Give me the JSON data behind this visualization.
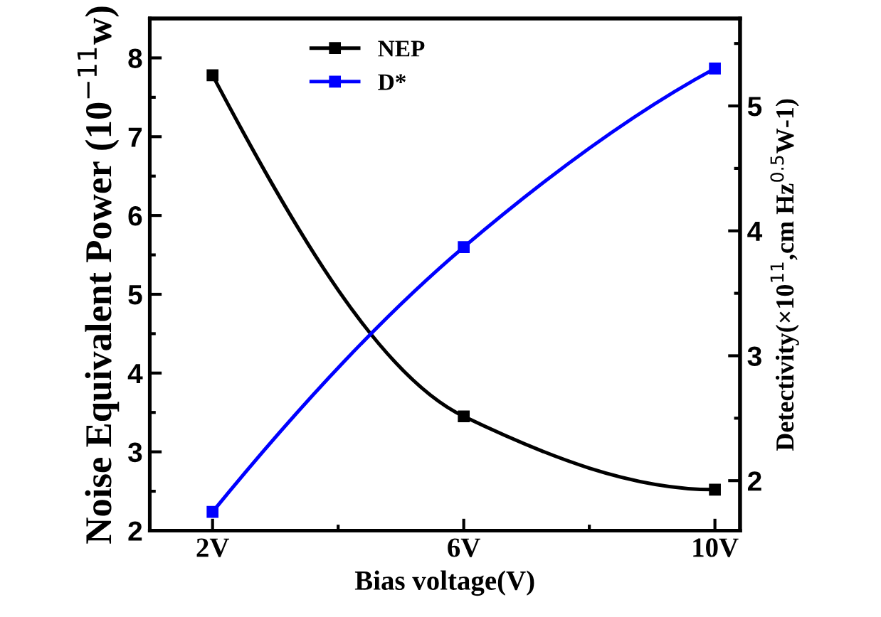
{
  "chart_data": {
    "type": "line",
    "xlabel": "Bias voltage(V)",
    "ylabel": "Noise Equivalent Power (10$^{−11}$w)",
    "y2label": "Detectivity(×10$^{11}$,cm Hz$^{0.5}$W-1)",
    "categories": [
      "2V",
      "6V",
      "10V"
    ],
    "series": [
      {
        "name": "NEP",
        "color": "#000000",
        "values": [
          7.78,
          3.45,
          2.52
        ]
      },
      {
        "name": "D*",
        "color": "#0000ff",
        "values": [
          1.75,
          3.87,
          5.3
        ],
        "axis": "y2"
      }
    ],
    "ylim": [
      2,
      8.5
    ],
    "yticks": [
      2,
      3,
      4,
      5,
      6,
      7,
      8
    ],
    "y2lim": [
      1.6,
      5.7
    ],
    "y2ticks": [
      2,
      3,
      4,
      5
    ],
    "marker": "square",
    "line_style": "solid",
    "legend": "top",
    "grid": false
  }
}
